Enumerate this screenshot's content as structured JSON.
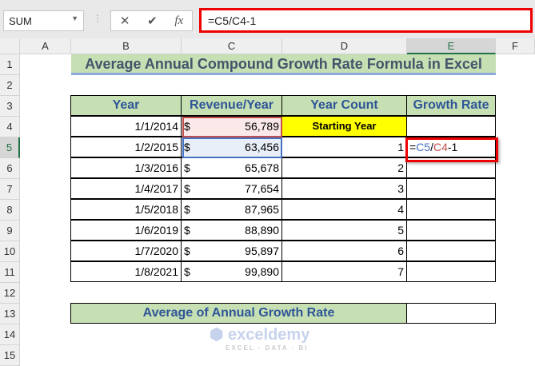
{
  "name_box": "SUM",
  "formula_bar": "=C5/C4-1",
  "formula_buttons": {
    "cancel": "✕",
    "enter": "✔",
    "fx": "fx"
  },
  "columns": [
    "A",
    "B",
    "C",
    "D",
    "E",
    "F"
  ],
  "rows": [
    "1",
    "2",
    "3",
    "4",
    "5",
    "6",
    "7",
    "8",
    "9",
    "10",
    "11",
    "12",
    "13",
    "14",
    "15"
  ],
  "title": "Average Annual Compound Growth Rate Formula in Excel",
  "headers": [
    "Year",
    "Revenue/Year",
    "Year Count",
    "Growth Rate"
  ],
  "table": [
    {
      "year": "1/1/2014",
      "cur": "$",
      "rev": "56,789",
      "count": "Starting Year",
      "rate": ""
    },
    {
      "year": "1/2/2015",
      "cur": "$",
      "rev": "63,456",
      "count": "1",
      "rate": ""
    },
    {
      "year": "1/3/2016",
      "cur": "$",
      "rev": "65,678",
      "count": "2",
      "rate": ""
    },
    {
      "year": "1/4/2017",
      "cur": "$",
      "rev": "77,654",
      "count": "3",
      "rate": ""
    },
    {
      "year": "1/5/2018",
      "cur": "$",
      "rev": "87,965",
      "count": "4",
      "rate": ""
    },
    {
      "year": "1/6/2019",
      "cur": "$",
      "rev": "88,890",
      "count": "5",
      "rate": ""
    },
    {
      "year": "1/7/2020",
      "cur": "$",
      "rev": "95,897",
      "count": "6",
      "rate": ""
    },
    {
      "year": "1/8/2021",
      "cur": "$",
      "rev": "99,890",
      "count": "7",
      "rate": ""
    }
  ],
  "edit_formula": {
    "eq": "=",
    "ref1": "C5",
    "slash": "/",
    "ref2": "C4",
    "rest": "-1"
  },
  "average_label": "Average of Annual Growth Rate",
  "watermark": {
    "name": "exceldemy",
    "tagline": "EXCEL · DATA · BI"
  },
  "colors": {
    "ref1": "#4472c4",
    "ref2": "#c0504d",
    "highlight": "#ff0000",
    "header_fill": "#c6e0b4",
    "starting_fill": "#ffff00"
  }
}
